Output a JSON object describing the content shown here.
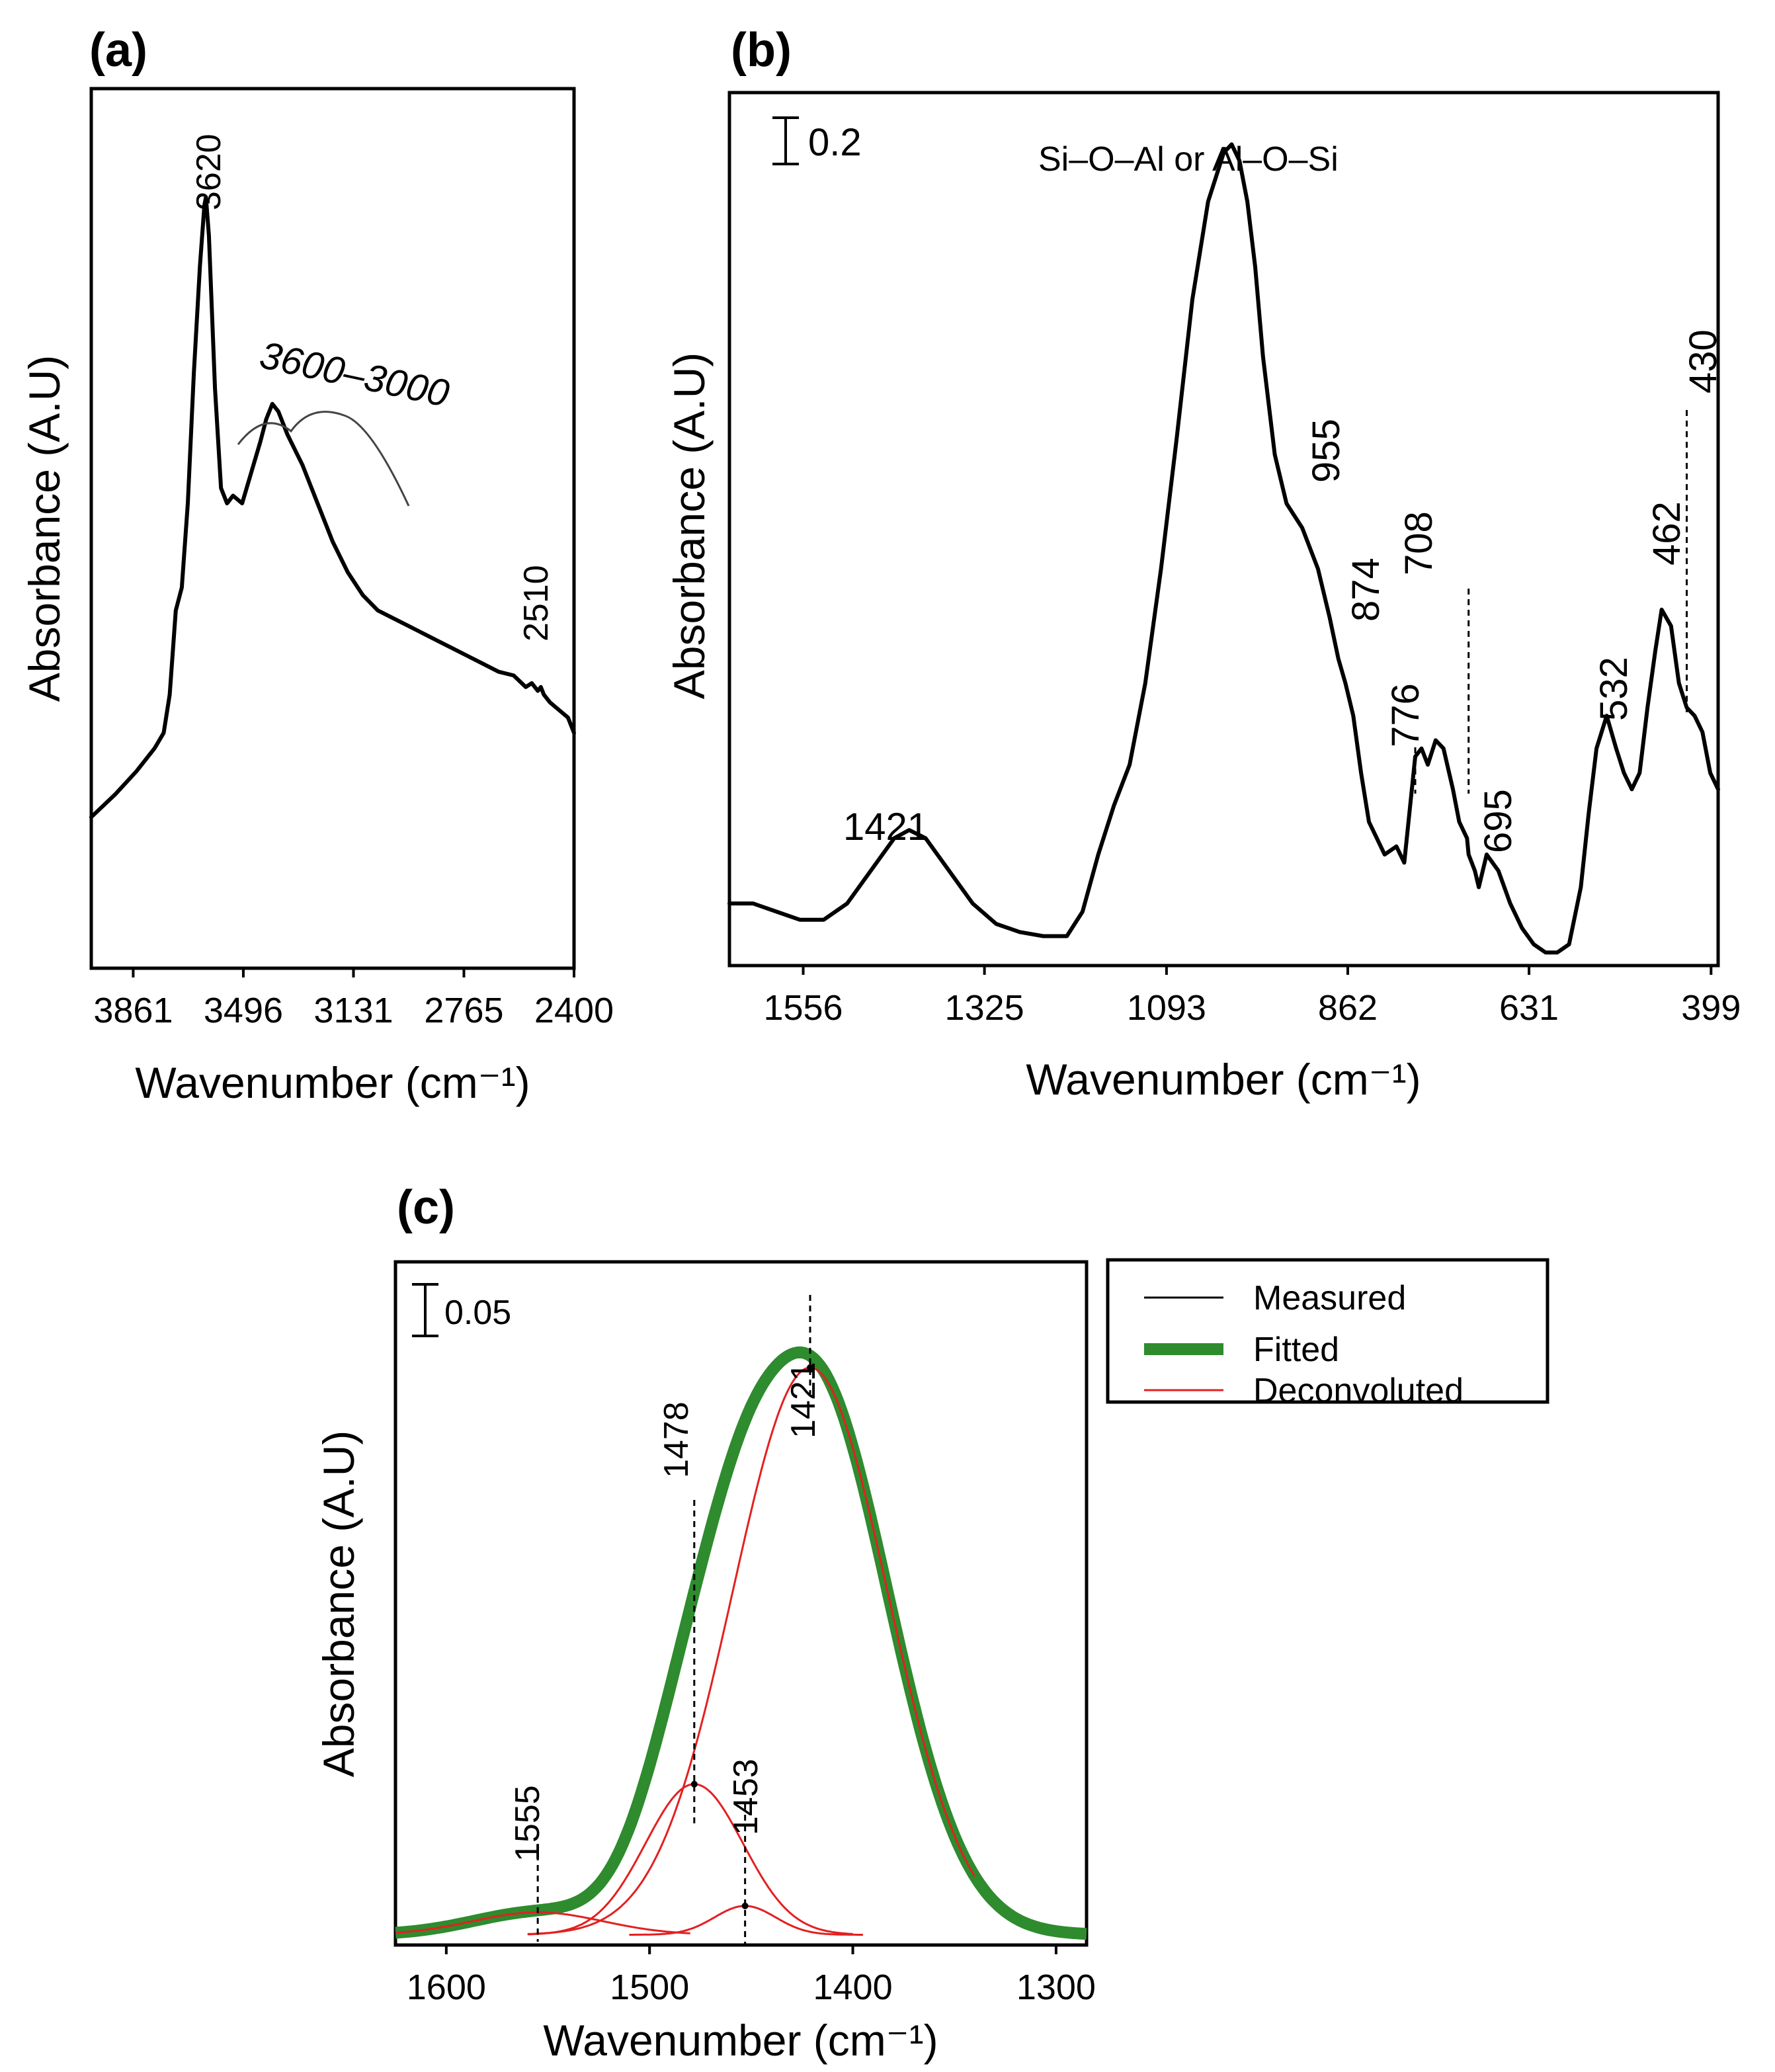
{
  "chart_data": [
    {
      "panel": "(a)",
      "type": "line",
      "xlabel": "Wavenumber (cm⁻¹)",
      "ylabel": "Absorbance (A.U)",
      "xlim": [
        4000,
        2400
      ],
      "x_ticks": [
        {
          "value": 3861,
          "label": "3861"
        },
        {
          "value": 3496,
          "label": "3496"
        },
        {
          "value": 3131,
          "label": "3131"
        },
        {
          "value": 2765,
          "label": "2765"
        },
        {
          "value": 2400,
          "label": "2400"
        }
      ],
      "ylim": [
        0,
        1
      ],
      "series": [
        {
          "name": "Absorbance",
          "x": [
            4000,
            3920,
            3850,
            3790,
            3760,
            3740,
            3720,
            3700,
            3680,
            3660,
            3640,
            3625,
            3620,
            3610,
            3590,
            3570,
            3550,
            3530,
            3500,
            3470,
            3440,
            3420,
            3400,
            3380,
            3350,
            3300,
            3250,
            3200,
            3150,
            3100,
            3050,
            3000,
            2950,
            2900,
            2850,
            2800,
            2750,
            2700,
            2650,
            2600,
            2560,
            2540,
            2520,
            2510,
            2500,
            2480,
            2450,
            2420,
            2400
          ],
          "y": [
            0.14,
            0.17,
            0.2,
            0.23,
            0.25,
            0.3,
            0.41,
            0.44,
            0.55,
            0.72,
            0.86,
            0.94,
            0.95,
            0.9,
            0.7,
            0.57,
            0.55,
            0.56,
            0.55,
            0.59,
            0.63,
            0.66,
            0.68,
            0.67,
            0.64,
            0.6,
            0.55,
            0.5,
            0.46,
            0.43,
            0.41,
            0.4,
            0.39,
            0.38,
            0.37,
            0.36,
            0.35,
            0.34,
            0.33,
            0.325,
            0.31,
            0.315,
            0.305,
            0.31,
            0.3,
            0.29,
            0.28,
            0.27,
            0.25
          ]
        }
      ],
      "annotations": [
        {
          "text": "3620",
          "x": 3620
        },
        {
          "text": "3600–3000",
          "x": 3300
        },
        {
          "text": "2510",
          "x": 2510
        }
      ]
    },
    {
      "panel": "(b)",
      "type": "line",
      "xlabel": "Wavenumber (cm⁻¹)",
      "ylabel": "Absorbance (A.U)",
      "xlim": [
        1650,
        390
      ],
      "x_ticks": [
        {
          "value": 1556,
          "label": "1556"
        },
        {
          "value": 1325,
          "label": "1325"
        },
        {
          "value": 1093,
          "label": "1093"
        },
        {
          "value": 862,
          "label": "862"
        },
        {
          "value": 631,
          "label": "631"
        },
        {
          "value": 399,
          "label": "399"
        }
      ],
      "ylim": [
        0,
        1
      ],
      "scale_bar": "0.2",
      "series": [
        {
          "name": "Absorbance",
          "x": [
            1650,
            1620,
            1590,
            1560,
            1530,
            1500,
            1470,
            1440,
            1421,
            1400,
            1370,
            1340,
            1310,
            1280,
            1250,
            1220,
            1200,
            1180,
            1160,
            1140,
            1120,
            1100,
            1080,
            1060,
            1040,
            1020,
            1010,
            1000,
            990,
            980,
            970,
            955,
            940,
            920,
            900,
            885,
            874,
            865,
            855,
            845,
            835,
            825,
            815,
            800,
            790,
            776,
            768,
            760,
            750,
            740,
            728,
            720,
            710,
            708,
            700,
            695,
            685,
            670,
            655,
            640,
            625,
            610,
            595,
            580,
            565,
            555,
            545,
            532,
            520,
            510,
            500,
            490,
            480,
            470,
            462,
            450,
            440,
            430,
            420,
            410,
            400,
            390
          ],
          "y": [
            0.06,
            0.06,
            0.05,
            0.04,
            0.04,
            0.06,
            0.1,
            0.14,
            0.15,
            0.14,
            0.1,
            0.06,
            0.035,
            0.025,
            0.02,
            0.02,
            0.05,
            0.12,
            0.18,
            0.23,
            0.33,
            0.47,
            0.63,
            0.8,
            0.92,
            0.98,
            0.99,
            0.97,
            0.92,
            0.84,
            0.73,
            0.61,
            0.55,
            0.52,
            0.47,
            0.41,
            0.36,
            0.33,
            0.29,
            0.22,
            0.16,
            0.14,
            0.12,
            0.13,
            0.11,
            0.24,
            0.25,
            0.23,
            0.26,
            0.25,
            0.2,
            0.16,
            0.14,
            0.12,
            0.1,
            0.08,
            0.12,
            0.1,
            0.06,
            0.03,
            0.01,
            0.0,
            0.0,
            0.01,
            0.08,
            0.17,
            0.25,
            0.29,
            0.25,
            0.22,
            0.2,
            0.22,
            0.3,
            0.37,
            0.42,
            0.4,
            0.33,
            0.3,
            0.29,
            0.27,
            0.22,
            0.2
          ]
        }
      ],
      "annotations": [
        {
          "text": "Si–O–Al or Al–O–Si",
          "x": 1010
        },
        {
          "text": "1421",
          "x": 1421
        },
        {
          "text": "955",
          "x": 955
        },
        {
          "text": "874",
          "x": 874
        },
        {
          "text": "776",
          "x": 776
        },
        {
          "text": "708",
          "x": 708
        },
        {
          "text": "695",
          "x": 695
        },
        {
          "text": "532",
          "x": 532
        },
        {
          "text": "462",
          "x": 462
        },
        {
          "text": "430",
          "x": 430
        }
      ]
    },
    {
      "panel": "(c)",
      "type": "line",
      "xlabel": "Wavenumber (cm⁻¹)",
      "ylabel": "Absorbance (A.U)",
      "xlim": [
        1625,
        1285
      ],
      "x_ticks": [
        {
          "value": 1600,
          "label": "1600"
        },
        {
          "value": 1500,
          "label": "1500"
        },
        {
          "value": 1400,
          "label": "1400"
        },
        {
          "value": 1300,
          "label": "1300"
        }
      ],
      "ylim": [
        0,
        0.105
      ],
      "scale_bar": "0.05",
      "legend": [
        "Measured",
        "Fitted",
        "Deconvoluted"
      ],
      "legend_position": "outside-right",
      "series": [
        {
          "name": "Measured",
          "kind": "measured",
          "model": "sum",
          "components": [
            {
              "center": 1421,
              "height": 0.0885,
              "width": 38
            },
            {
              "center": 1478,
              "height": 0.0235,
              "width": 24
            },
            {
              "center": 1453,
              "height": 0.0045,
              "width": 15
            },
            {
              "center": 1555,
              "height": 0.0035,
              "width": 32
            }
          ],
          "range": [
            1555,
            1300
          ]
        },
        {
          "name": "Fitted",
          "kind": "fitted",
          "model": "sum",
          "components": [
            {
              "center": 1421,
              "height": 0.0885,
              "width": 38
            },
            {
              "center": 1478,
              "height": 0.0235,
              "width": 24
            },
            {
              "center": 1453,
              "height": 0.0045,
              "width": 15
            },
            {
              "center": 1555,
              "height": 0.0035,
              "width": 32
            }
          ],
          "range": [
            1625,
            1285
          ]
        },
        {
          "name": "Deconvoluted 1421",
          "kind": "deconv",
          "model": "gaussian",
          "center": 1421,
          "height": 0.0885,
          "width": 38,
          "range": [
            1560,
            1340
          ]
        },
        {
          "name": "Deconvoluted 1478",
          "kind": "deconv",
          "model": "gaussian",
          "center": 1478,
          "height": 0.0235,
          "width": 24,
          "range": [
            1560,
            1400
          ]
        },
        {
          "name": "Deconvoluted 1453",
          "kind": "deconv",
          "model": "gaussian",
          "center": 1453,
          "height": 0.0045,
          "width": 15,
          "range": [
            1510,
            1395
          ]
        },
        {
          "name": "Deconvoluted 1555",
          "kind": "deconv",
          "model": "gaussian",
          "center": 1555,
          "height": 0.0035,
          "width": 32,
          "range": [
            1625,
            1480
          ]
        }
      ],
      "annotations": [
        {
          "text": "1555",
          "x": 1555
        },
        {
          "text": "1478",
          "x": 1478
        },
        {
          "text": "1453",
          "x": 1453
        },
        {
          "text": "1421",
          "x": 1421
        }
      ]
    }
  ],
  "colors": {
    "measured": "#444444",
    "fitted": "#2e8b2e",
    "deconvoluted": "#e32020"
  }
}
